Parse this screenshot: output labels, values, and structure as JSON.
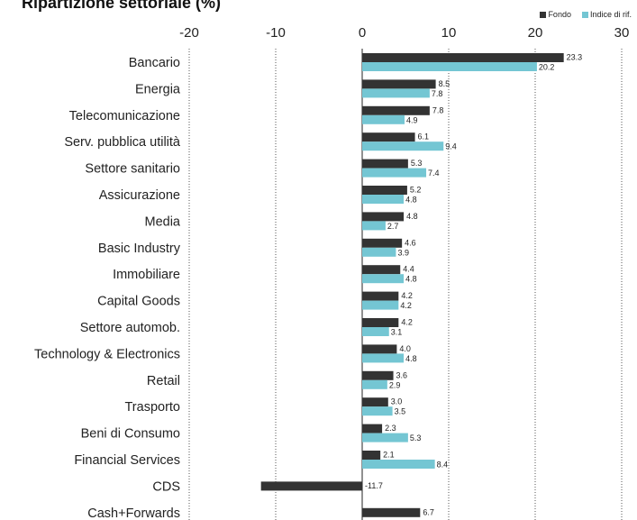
{
  "chart_data": {
    "type": "bar",
    "orientation": "horizontal",
    "title": "Ripartizione settoriale (%)",
    "categories": [
      "Bancario",
      "Energia",
      "Telecomunicazione",
      "Serv. pubblica utilità",
      "Settore sanitario",
      "Assicurazione",
      "Media",
      "Basic Industry",
      "Immobiliare",
      "Capital Goods",
      "Settore automob.",
      "Technology & Electronics",
      "Retail",
      "Trasporto",
      "Beni di Consumo",
      "Financial Services",
      "CDS",
      "Cash+Forwards"
    ],
    "series": [
      {
        "name": "Fondo",
        "color": "#333333",
        "values": [
          23.3,
          8.5,
          7.8,
          6.1,
          5.3,
          5.2,
          4.8,
          4.6,
          4.4,
          4.2,
          4.2,
          4.0,
          3.6,
          3.0,
          2.3,
          2.1,
          -11.7,
          6.7
        ]
      },
      {
        "name": "Indice di rif.",
        "color": "#74c6d3",
        "values": [
          20.2,
          7.8,
          4.9,
          9.4,
          7.4,
          4.8,
          2.7,
          3.9,
          4.8,
          4.2,
          3.1,
          4.8,
          2.9,
          3.5,
          5.3,
          8.4,
          null,
          null
        ]
      }
    ],
    "value_labels": {
      "Fondo": [
        "23.3",
        "8.5",
        "7.8",
        "6.1",
        "5.3",
        "5.2",
        "4.8",
        "4.6",
        "4.4",
        "4.2",
        "4.2",
        "4.0",
        "3.6",
        "3.0",
        "2.3",
        "2.1",
        "-11.7",
        "6.7"
      ],
      "Indice di rif.": [
        "20.2",
        "7.8",
        "4.9",
        "9.4",
        "7.4",
        "4.8",
        "2.7",
        "3.9",
        "4.8",
        "4.2",
        "3.1",
        "4.8",
        "2.9",
        "3.5",
        "5.3",
        "8.4",
        "",
        ""
      ]
    },
    "x_ticks": [
      -20,
      -10,
      0,
      10,
      20,
      30
    ],
    "x_tick_labels": [
      "-20",
      "-10",
      "0",
      "10",
      "20",
      "30"
    ],
    "xlim": [
      -20,
      30
    ],
    "grid": "vertical dotted",
    "legend_position": "top-right"
  }
}
